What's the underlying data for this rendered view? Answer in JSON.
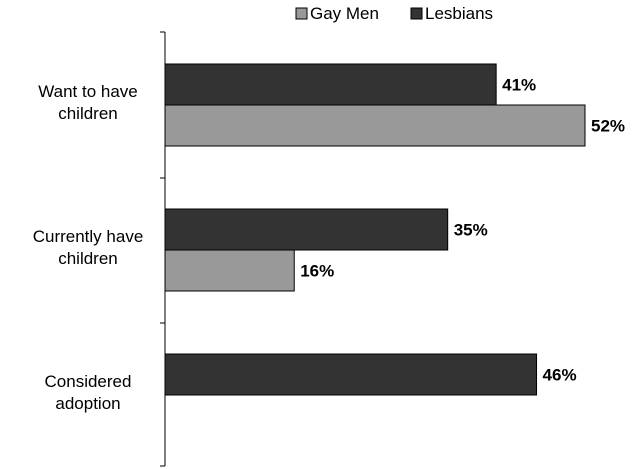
{
  "chart_data": {
    "type": "bar",
    "orientation": "horizontal",
    "categories": [
      [
        "Want to have",
        "children"
      ],
      [
        "Currently have",
        "children"
      ],
      [
        "Considered",
        "adoption"
      ]
    ],
    "series": [
      {
        "name": "Lesbians",
        "color": "#333333",
        "values": [
          41,
          35,
          46
        ],
        "labels": [
          "41%",
          "35%",
          "46%"
        ]
      },
      {
        "name": "Gay Men",
        "color": "#999999",
        "values": [
          52,
          16,
          null
        ],
        "labels": [
          "52%",
          "16%",
          ""
        ]
      }
    ],
    "legend": {
      "position": "top",
      "order": [
        "Gay Men",
        "Lesbians"
      ]
    },
    "xlim": [
      0,
      55
    ],
    "title": "",
    "xlabel": "",
    "ylabel": "",
    "grid": false
  }
}
